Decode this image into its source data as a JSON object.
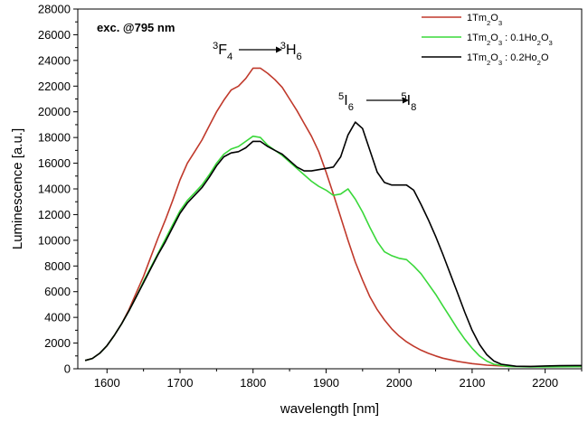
{
  "chart_data": {
    "type": "line",
    "xlabel": "wavelength [nm]",
    "ylabel": "Luminescence [a.u.]",
    "xlim": [
      1560,
      2250
    ],
    "ylim": [
      0,
      28000
    ],
    "x_ticks": [
      1600,
      1700,
      1800,
      1900,
      2000,
      2100,
      2200
    ],
    "y_ticks": [
      0,
      2000,
      4000,
      6000,
      8000,
      10000,
      12000,
      14000,
      16000,
      18000,
      20000,
      22000,
      24000,
      26000,
      28000
    ],
    "excitation_label": "exc. @795 nm",
    "annotations": [
      {
        "text": "3F4 → 3H6",
        "parts": [
          {
            "sup": "3"
          },
          {
            "text": "F"
          },
          {
            "sub": "4"
          },
          {
            "arrow": true
          },
          {
            "sup": "3"
          },
          {
            "text": "H"
          },
          {
            "sub": "6"
          }
        ]
      },
      {
        "text": "5I6 → 5I8",
        "parts": [
          {
            "sup": "5"
          },
          {
            "text": "I"
          },
          {
            "sub": "6"
          },
          {
            "arrow": true
          },
          {
            "sup": "5"
          },
          {
            "text": "I"
          },
          {
            "sub": "8"
          }
        ]
      }
    ],
    "legend_position": "top-right",
    "series": [
      {
        "name": "1Tm2O3",
        "legend_parts": [
          {
            "text": "1Tm"
          },
          {
            "sub": "2"
          },
          {
            "text": "O"
          },
          {
            "sub": "3"
          }
        ],
        "color": "#c0392b",
        "points": [
          [
            1570,
            650
          ],
          [
            1580,
            800
          ],
          [
            1590,
            1200
          ],
          [
            1600,
            1800
          ],
          [
            1610,
            2600
          ],
          [
            1620,
            3500
          ],
          [
            1630,
            4600
          ],
          [
            1640,
            5900
          ],
          [
            1650,
            7200
          ],
          [
            1660,
            8700
          ],
          [
            1670,
            10200
          ],
          [
            1680,
            11600
          ],
          [
            1690,
            13100
          ],
          [
            1700,
            14700
          ],
          [
            1710,
            16000
          ],
          [
            1720,
            16900
          ],
          [
            1730,
            17800
          ],
          [
            1740,
            18900
          ],
          [
            1750,
            20000
          ],
          [
            1760,
            20900
          ],
          [
            1770,
            21700
          ],
          [
            1780,
            22000
          ],
          [
            1790,
            22600
          ],
          [
            1800,
            23400
          ],
          [
            1810,
            23400
          ],
          [
            1820,
            23000
          ],
          [
            1830,
            22500
          ],
          [
            1840,
            21900
          ],
          [
            1850,
            21000
          ],
          [
            1860,
            20100
          ],
          [
            1870,
            19100
          ],
          [
            1880,
            18100
          ],
          [
            1890,
            16900
          ],
          [
            1900,
            15300
          ],
          [
            1910,
            13600
          ],
          [
            1920,
            11800
          ],
          [
            1930,
            10000
          ],
          [
            1940,
            8300
          ],
          [
            1950,
            6900
          ],
          [
            1960,
            5600
          ],
          [
            1970,
            4600
          ],
          [
            1980,
            3800
          ],
          [
            1990,
            3100
          ],
          [
            2000,
            2550
          ],
          [
            2010,
            2100
          ],
          [
            2020,
            1750
          ],
          [
            2030,
            1450
          ],
          [
            2040,
            1200
          ],
          [
            2050,
            1000
          ],
          [
            2060,
            820
          ],
          [
            2080,
            580
          ],
          [
            2100,
            400
          ],
          [
            2120,
            280
          ],
          [
            2150,
            190
          ],
          [
            2180,
            170
          ],
          [
            2200,
            170
          ],
          [
            2250,
            170
          ]
        ]
      },
      {
        "name": "1Tm2O3 : 0.1Ho2O3",
        "legend_parts": [
          {
            "text": "1Tm"
          },
          {
            "sub": "2"
          },
          {
            "text": "O"
          },
          {
            "sub": "3"
          },
          {
            "text": " : 0.1Ho"
          },
          {
            "sub": "2"
          },
          {
            "text": "O"
          },
          {
            "sub": "3"
          }
        ],
        "color": "#3ad83a",
        "points": [
          [
            1570,
            650
          ],
          [
            1580,
            800
          ],
          [
            1590,
            1200
          ],
          [
            1600,
            1800
          ],
          [
            1610,
            2600
          ],
          [
            1620,
            3500
          ],
          [
            1630,
            4500
          ],
          [
            1640,
            5600
          ],
          [
            1650,
            6800
          ],
          [
            1660,
            7900
          ],
          [
            1670,
            9000
          ],
          [
            1680,
            10100
          ],
          [
            1690,
            11200
          ],
          [
            1700,
            12300
          ],
          [
            1710,
            13100
          ],
          [
            1720,
            13700
          ],
          [
            1730,
            14300
          ],
          [
            1740,
            15100
          ],
          [
            1750,
            16000
          ],
          [
            1760,
            16700
          ],
          [
            1770,
            17100
          ],
          [
            1780,
            17300
          ],
          [
            1790,
            17700
          ],
          [
            1800,
            18100
          ],
          [
            1810,
            18000
          ],
          [
            1820,
            17400
          ],
          [
            1830,
            17000
          ],
          [
            1840,
            16600
          ],
          [
            1850,
            16100
          ],
          [
            1860,
            15600
          ],
          [
            1870,
            15100
          ],
          [
            1880,
            14600
          ],
          [
            1890,
            14200
          ],
          [
            1900,
            13900
          ],
          [
            1910,
            13500
          ],
          [
            1920,
            13600
          ],
          [
            1930,
            14000
          ],
          [
            1940,
            13200
          ],
          [
            1950,
            12200
          ],
          [
            1960,
            11000
          ],
          [
            1970,
            9900
          ],
          [
            1980,
            9100
          ],
          [
            1990,
            8800
          ],
          [
            2000,
            8600
          ],
          [
            2010,
            8500
          ],
          [
            2020,
            8000
          ],
          [
            2030,
            7400
          ],
          [
            2040,
            6600
          ],
          [
            2050,
            5800
          ],
          [
            2060,
            4900
          ],
          [
            2070,
            4000
          ],
          [
            2080,
            3100
          ],
          [
            2090,
            2300
          ],
          [
            2100,
            1600
          ],
          [
            2110,
            1000
          ],
          [
            2120,
            600
          ],
          [
            2130,
            350
          ],
          [
            2150,
            180
          ],
          [
            2180,
            150
          ],
          [
            2200,
            150
          ],
          [
            2250,
            170
          ]
        ]
      },
      {
        "name": "1Tm2O3 : 0.2Ho2O",
        "legend_parts": [
          {
            "text": "1Tm"
          },
          {
            "sub": "2"
          },
          {
            "text": "O"
          },
          {
            "sub": "3"
          },
          {
            "text": " : 0.2Ho"
          },
          {
            "sub": "2"
          },
          {
            "text": "O"
          }
        ],
        "color": "#000000",
        "points": [
          [
            1570,
            650
          ],
          [
            1580,
            800
          ],
          [
            1590,
            1200
          ],
          [
            1600,
            1800
          ],
          [
            1610,
            2600
          ],
          [
            1620,
            3500
          ],
          [
            1630,
            4500
          ],
          [
            1640,
            5600
          ],
          [
            1650,
            6700
          ],
          [
            1660,
            7800
          ],
          [
            1670,
            8900
          ],
          [
            1680,
            9900
          ],
          [
            1690,
            11000
          ],
          [
            1700,
            12100
          ],
          [
            1710,
            12900
          ],
          [
            1720,
            13500
          ],
          [
            1730,
            14100
          ],
          [
            1740,
            14900
          ],
          [
            1750,
            15800
          ],
          [
            1760,
            16500
          ],
          [
            1770,
            16800
          ],
          [
            1780,
            16900
          ],
          [
            1790,
            17200
          ],
          [
            1800,
            17700
          ],
          [
            1810,
            17700
          ],
          [
            1820,
            17300
          ],
          [
            1830,
            17000
          ],
          [
            1840,
            16700
          ],
          [
            1850,
            16200
          ],
          [
            1860,
            15700
          ],
          [
            1870,
            15400
          ],
          [
            1880,
            15400
          ],
          [
            1890,
            15500
          ],
          [
            1900,
            15600
          ],
          [
            1910,
            15700
          ],
          [
            1920,
            16500
          ],
          [
            1930,
            18200
          ],
          [
            1940,
            19200
          ],
          [
            1950,
            18700
          ],
          [
            1960,
            17000
          ],
          [
            1970,
            15300
          ],
          [
            1980,
            14500
          ],
          [
            1990,
            14300
          ],
          [
            2000,
            14300
          ],
          [
            2010,
            14300
          ],
          [
            2020,
            13900
          ],
          [
            2030,
            12800
          ],
          [
            2040,
            11600
          ],
          [
            2050,
            10300
          ],
          [
            2060,
            8900
          ],
          [
            2070,
            7400
          ],
          [
            2080,
            5900
          ],
          [
            2090,
            4400
          ],
          [
            2100,
            3000
          ],
          [
            2110,
            1900
          ],
          [
            2120,
            1100
          ],
          [
            2130,
            600
          ],
          [
            2140,
            350
          ],
          [
            2160,
            200
          ],
          [
            2180,
            180
          ],
          [
            2200,
            220
          ],
          [
            2220,
            240
          ],
          [
            2250,
            250
          ]
        ]
      }
    ]
  }
}
